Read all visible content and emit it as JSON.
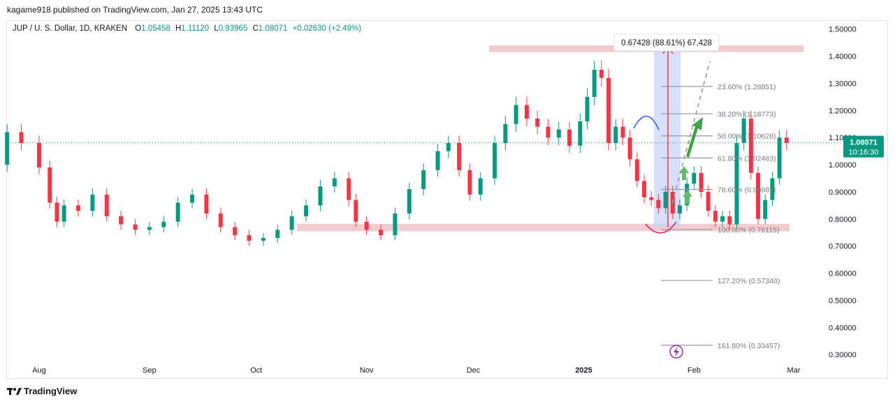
{
  "publisher_line": "kagame918 published on TradingView.com, Jan 27, 2025 13:43 UTC",
  "legend": {
    "symbol": "JUP / U. S. Dollar, 1D, KRAKEN",
    "o_label": "O",
    "o": "1.05458",
    "h_label": "H",
    "h": "1.11120",
    "l_label": "L",
    "l": "0.93965",
    "c_label": "C",
    "c": "1.08071",
    "change": "+0.02630 (+2.49%)"
  },
  "footer": {
    "brand": "TradingView",
    "icon": "tradingview-logo-icon"
  },
  "colors": {
    "up": "#089981",
    "down": "#f23645",
    "zone": "#f2c3c8",
    "range": "#c5d3f5",
    "fib": "#9598a1"
  },
  "chart_data": {
    "type": "candlestick",
    "ylim": [
      0.28,
      1.53
    ],
    "y_ticks": [
      "1.50000",
      "1.40000",
      "1.30000",
      "1.20000",
      "1.10000",
      "1.00000",
      "0.90000",
      "0.80000",
      "0.70000",
      "0.60000",
      "0.50000",
      "0.40000",
      "0.30000"
    ],
    "x_ticks": [
      {
        "label": "Aug",
        "date": "2024-08-01",
        "bold": false
      },
      {
        "label": "Sep",
        "date": "2024-09-01",
        "bold": false
      },
      {
        "label": "Oct",
        "date": "2024-10-01",
        "bold": false
      },
      {
        "label": "Nov",
        "date": "2024-11-01",
        "bold": false
      },
      {
        "label": "Dec",
        "date": "2024-12-01",
        "bold": false
      },
      {
        "label": "2025",
        "date": "2025-01-01",
        "bold": true
      },
      {
        "label": "Feb",
        "date": "2025-02-01",
        "bold": false
      },
      {
        "label": "Mar",
        "date": "2025-03-01",
        "bold": false
      }
    ],
    "last_price": {
      "value": 1.08071,
      "label": "1.08071",
      "countdown": "10:16:30"
    },
    "closes": [
      [
        "2024-07-18",
        1.0
      ],
      [
        "2024-07-23",
        1.12
      ],
      [
        "2024-07-27",
        1.08
      ],
      [
        "2024-08-01",
        0.99
      ],
      [
        "2024-08-04",
        0.86
      ],
      [
        "2024-08-06",
        0.79
      ],
      [
        "2024-08-08",
        0.85
      ],
      [
        "2024-08-12",
        0.83
      ],
      [
        "2024-08-16",
        0.89
      ],
      [
        "2024-08-20",
        0.81
      ],
      [
        "2024-08-24",
        0.78
      ],
      [
        "2024-08-28",
        0.76
      ],
      [
        "2024-09-01",
        0.77
      ],
      [
        "2024-09-05",
        0.79
      ],
      [
        "2024-09-09",
        0.86
      ],
      [
        "2024-09-13",
        0.89
      ],
      [
        "2024-09-17",
        0.82
      ],
      [
        "2024-09-21",
        0.77
      ],
      [
        "2024-09-25",
        0.74
      ],
      [
        "2024-09-29",
        0.72
      ],
      [
        "2024-10-03",
        0.73
      ],
      [
        "2024-10-07",
        0.76
      ],
      [
        "2024-10-11",
        0.81
      ],
      [
        "2024-10-15",
        0.85
      ],
      [
        "2024-10-19",
        0.92
      ],
      [
        "2024-10-23",
        0.95
      ],
      [
        "2024-10-27",
        0.87
      ],
      [
        "2024-10-29",
        0.79
      ],
      [
        "2024-11-01",
        0.76
      ],
      [
        "2024-11-05",
        0.74
      ],
      [
        "2024-11-09",
        0.82
      ],
      [
        "2024-11-13",
        0.91
      ],
      [
        "2024-11-17",
        0.98
      ],
      [
        "2024-11-21",
        1.05
      ],
      [
        "2024-11-24",
        1.08
      ],
      [
        "2024-11-27",
        0.98
      ],
      [
        "2024-11-30",
        0.89
      ],
      [
        "2024-12-03",
        0.95
      ],
      [
        "2024-12-07",
        1.08
      ],
      [
        "2024-12-10",
        1.15
      ],
      [
        "2024-12-13",
        1.22
      ],
      [
        "2024-12-16",
        1.17
      ],
      [
        "2024-12-19",
        1.14
      ],
      [
        "2024-12-22",
        1.1
      ],
      [
        "2024-12-25",
        1.13
      ],
      [
        "2024-12-28",
        1.07
      ],
      [
        "2024-12-31",
        1.16
      ],
      [
        "2025-01-02",
        1.25
      ],
      [
        "2025-01-04",
        1.35
      ],
      [
        "2025-01-06",
        1.32
      ],
      [
        "2025-01-08",
        1.08
      ],
      [
        "2025-01-10",
        1.14
      ],
      [
        "2025-01-12",
        1.1
      ],
      [
        "2025-01-14",
        1.02
      ],
      [
        "2025-01-16",
        0.94
      ],
      [
        "2025-01-18",
        0.88
      ],
      [
        "2025-01-20",
        0.87
      ],
      [
        "2025-01-22",
        0.84
      ],
      [
        "2025-01-24",
        0.9
      ],
      [
        "2025-01-26",
        0.82
      ],
      [
        "2025-01-28",
        0.85
      ],
      [
        "2025-01-30",
        0.93
      ],
      [
        "2025-02-01",
        0.97
      ],
      [
        "2025-02-03",
        0.9
      ],
      [
        "2025-02-05",
        0.83
      ],
      [
        "2025-02-07",
        0.79
      ],
      [
        "2025-02-09",
        0.81
      ],
      [
        "2025-02-11",
        0.78
      ],
      [
        "2025-02-13",
        1.08
      ],
      [
        "2025-02-15",
        1.17
      ],
      [
        "2025-02-17",
        0.97
      ],
      [
        "2025-02-19",
        0.8
      ],
      [
        "2025-02-21",
        0.87
      ],
      [
        "2025-02-23",
        0.95
      ],
      [
        "2025-02-25",
        1.1
      ],
      [
        "2025-02-27",
        1.08
      ]
    ],
    "fib_levels": [
      {
        "label": "23.60% (1.28851)",
        "value": 1.28851
      },
      {
        "label": "38.20% (1.18773)",
        "value": 1.18773
      },
      {
        "label": "50.00% (1.10628)",
        "value": 1.10628
      },
      {
        "label": "61.80% (1.02483)",
        "value": 1.02483
      },
      {
        "label": "78.60% (0.90887)",
        "value": 0.90887
      },
      {
        "label": "100.00% (0.76115)",
        "value": 0.76115
      },
      {
        "label": "127.20% (0.57340)",
        "value": 0.5734
      },
      {
        "label": "161.80% (0.33457)",
        "value": 0.33457
      }
    ],
    "resistance_zone": {
      "low": 1.415,
      "high": 1.44
    },
    "support_zone": {
      "low": 0.755,
      "high": 0.782
    },
    "measure_label": "0.67428 (88.61%) 67,428"
  }
}
